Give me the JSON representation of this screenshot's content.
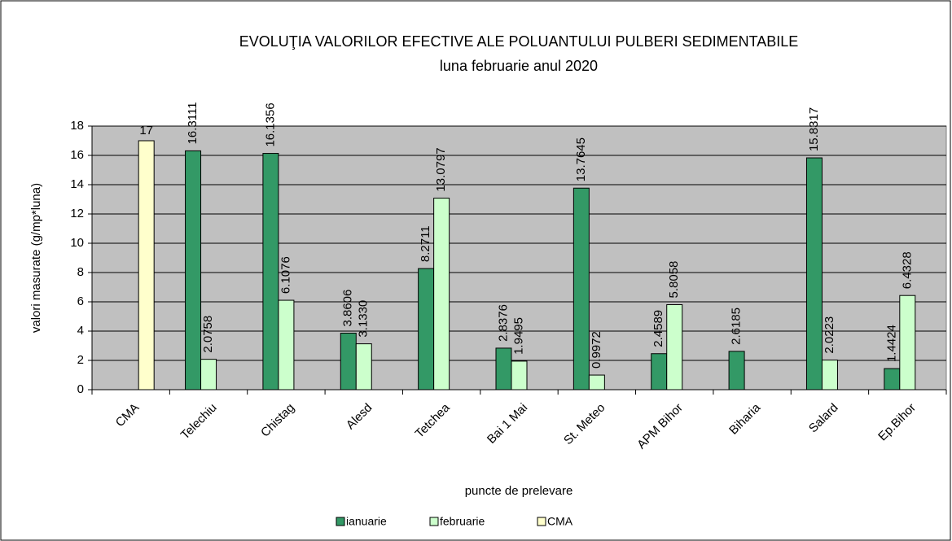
{
  "chart_data": {
    "type": "bar",
    "title": "EVOLUŢIA VALORILOR EFECTIVE ALE POLUANTULUI PULBERI SEDIMENTABILE",
    "subtitle": "luna  februarie anul 2020",
    "x_label": "puncte de prelevare",
    "y_label": "valori masurate (g/mp*luna)",
    "categories": [
      "CMA",
      "Telechiu",
      "Chistag",
      "Alesd",
      "Tetchea",
      "Bai 1 Mai",
      "St. Meteo",
      "APM Bihor",
      "Biharia",
      "Salard",
      "Ep.Bihor"
    ],
    "series": [
      {
        "name": "ianuarie",
        "color": "#339966",
        "values": [
          null,
          16.3111,
          16.1356,
          3.8606,
          8.2711,
          2.8376,
          13.7645,
          2.4589,
          2.6185,
          15.8317,
          1.4424
        ]
      },
      {
        "name": "februarie",
        "color": "#ccffcc",
        "values": [
          null,
          2.0758,
          6.1076,
          3.133,
          13.0797,
          1.9495,
          0.9972,
          5.8058,
          null,
          2.0223,
          6.4328
        ],
        "value_labels": [
          null,
          "2.0758",
          "6.1076",
          "3.1330",
          "13.0797",
          "1.9495",
          "0.9972",
          "5.8058",
          null,
          "2.0223",
          "6.4328"
        ]
      },
      {
        "name": "CMA",
        "color": "#ffffcc",
        "values": [
          17,
          null,
          null,
          null,
          null,
          null,
          null,
          null,
          null,
          null,
          null
        ]
      }
    ],
    "ylim": [
      0,
      18
    ],
    "yticks": [
      0,
      2,
      4,
      6,
      8,
      10,
      12,
      14,
      16,
      18
    ],
    "grid": true,
    "plot_background": "#c0c0c0",
    "legend": "bottom"
  }
}
